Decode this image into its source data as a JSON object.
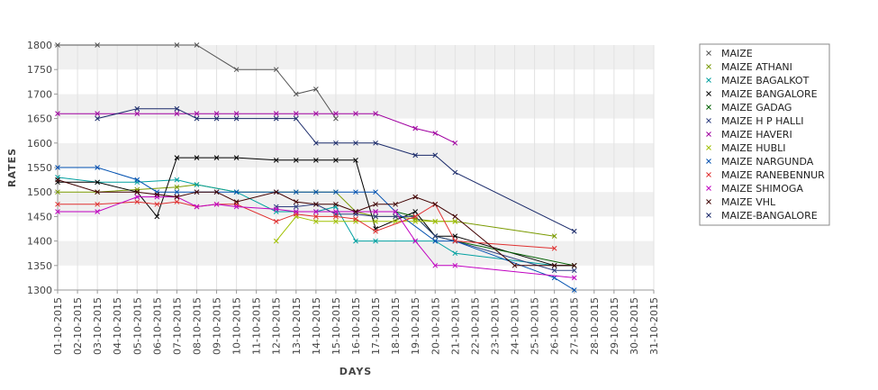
{
  "chart_data": {
    "type": "line",
    "xlabel": "DAYS",
    "ylabel": "RATES",
    "ylim": [
      1300,
      1800
    ],
    "yticks": [
      1300,
      1350,
      1400,
      1450,
      1500,
      1550,
      1600,
      1650,
      1700,
      1750,
      1800
    ],
    "grid": "alternating horizontal bands",
    "legend_position": "right",
    "categories": [
      "01-10-2015",
      "02-10-2015",
      "03-10-2015",
      "04-10-2015",
      "05-10-2015",
      "06-10-2015",
      "07-10-2015",
      "08-10-2015",
      "09-10-2015",
      "10-10-2015",
      "11-10-2015",
      "12-10-2015",
      "13-10-2015",
      "14-10-2015",
      "15-10-2015",
      "16-10-2015",
      "17-10-2015",
      "18-10-2015",
      "19-10-2015",
      "20-10-2015",
      "21-10-2015",
      "22-10-2015",
      "23-10-2015",
      "24-10-2015",
      "25-10-2015",
      "26-10-2015",
      "27-10-2015",
      "28-10-2015",
      "29-10-2015",
      "30-10-2015",
      "31-10-2015"
    ],
    "series": [
      {
        "name": "MAIZE",
        "color": "#555555",
        "points": [
          [
            0,
            1800
          ],
          [
            2,
            1800
          ],
          [
            6,
            1800
          ],
          [
            7,
            1800
          ],
          [
            9,
            1750
          ],
          [
            11,
            1750
          ],
          [
            12,
            1700
          ],
          [
            13,
            1710
          ],
          [
            14,
            1650
          ]
        ]
      },
      {
        "name": "MAIZE ATHANI",
        "color": "#7a9a00",
        "points": [
          [
            0,
            1500
          ],
          [
            2,
            1500
          ],
          [
            4,
            1505
          ],
          [
            6,
            1510
          ],
          [
            7,
            1515
          ],
          [
            9,
            1500
          ],
          [
            12,
            1500
          ],
          [
            13,
            1500
          ],
          [
            14,
            1500
          ],
          [
            15,
            1460
          ],
          [
            16,
            1450
          ],
          [
            17,
            1450
          ],
          [
            18,
            1445
          ],
          [
            19,
            1440
          ],
          [
            20,
            1440
          ],
          [
            25,
            1410
          ]
        ]
      },
      {
        "name": "MAIZE BAGALKOT",
        "color": "#00a0a0",
        "points": [
          [
            0,
            1530
          ],
          [
            2,
            1520
          ],
          [
            4,
            1520
          ],
          [
            6,
            1525
          ],
          [
            7,
            1515
          ],
          [
            9,
            1500
          ],
          [
            11,
            1460
          ],
          [
            12,
            1460
          ],
          [
            13,
            1460
          ],
          [
            14,
            1470
          ],
          [
            15,
            1400
          ],
          [
            16,
            1400
          ],
          [
            18,
            1400
          ],
          [
            19,
            1400
          ],
          [
            20,
            1375
          ],
          [
            25,
            1350
          ],
          [
            26,
            1350
          ]
        ]
      },
      {
        "name": "MAIZE BANGALORE",
        "color": "#000000",
        "points": [
          [
            0,
            1520
          ],
          [
            2,
            1520
          ],
          [
            4,
            1500
          ],
          [
            5,
            1450
          ],
          [
            6,
            1570
          ],
          [
            7,
            1570
          ],
          [
            8,
            1570
          ],
          [
            9,
            1570
          ],
          [
            11,
            1565
          ],
          [
            12,
            1565
          ],
          [
            13,
            1565
          ],
          [
            14,
            1565
          ],
          [
            15,
            1565
          ],
          [
            16,
            1425
          ],
          [
            18,
            1460
          ],
          [
            19,
            1410
          ],
          [
            20,
            1410
          ],
          [
            25,
            1350
          ],
          [
            26,
            1350
          ]
        ]
      },
      {
        "name": "MAIZE GADAG",
        "color": "#006000",
        "points": [
          [
            15,
            1460
          ],
          [
            16,
            1460
          ],
          [
            17,
            1460
          ],
          [
            18,
            1450
          ],
          [
            19,
            1410
          ],
          [
            20,
            1400
          ],
          [
            26,
            1350
          ]
        ]
      },
      {
        "name": "MAIZE H P HALLI",
        "color": "#304080",
        "points": [
          [
            11,
            1470
          ],
          [
            12,
            1470
          ],
          [
            13,
            1475
          ],
          [
            14,
            1455
          ],
          [
            15,
            1455
          ],
          [
            16,
            1450
          ],
          [
            17,
            1450
          ],
          [
            18,
            1450
          ],
          [
            19,
            1410
          ],
          [
            20,
            1400
          ],
          [
            25,
            1340
          ],
          [
            26,
            1340
          ]
        ]
      },
      {
        "name": "MAIZE HAVERI",
        "color": "#a000a0",
        "points": [
          [
            0,
            1660
          ],
          [
            2,
            1660
          ],
          [
            4,
            1660
          ],
          [
            6,
            1660
          ],
          [
            7,
            1660
          ],
          [
            8,
            1660
          ],
          [
            9,
            1660
          ],
          [
            11,
            1660
          ],
          [
            12,
            1660
          ],
          [
            13,
            1660
          ],
          [
            14,
            1660
          ],
          [
            15,
            1660
          ],
          [
            16,
            1660
          ],
          [
            18,
            1630
          ],
          [
            19,
            1620
          ],
          [
            20,
            1600
          ]
        ]
      },
      {
        "name": "MAIZE HUBLI",
        "color": "#a0c000",
        "points": [
          [
            11,
            1400
          ],
          [
            12,
            1450
          ],
          [
            13,
            1440
          ],
          [
            14,
            1440
          ],
          [
            15,
            1440
          ],
          [
            16,
            1440
          ],
          [
            17,
            1440
          ],
          [
            18,
            1440
          ],
          [
            19,
            1440
          ],
          [
            20,
            1440
          ]
        ]
      },
      {
        "name": "MAIZE NARGUNDA",
        "color": "#0050b0",
        "points": [
          [
            0,
            1550
          ],
          [
            2,
            1550
          ],
          [
            4,
            1525
          ],
          [
            5,
            1500
          ],
          [
            6,
            1500
          ],
          [
            7,
            1500
          ],
          [
            8,
            1500
          ],
          [
            9,
            1500
          ],
          [
            11,
            1500
          ],
          [
            12,
            1500
          ],
          [
            13,
            1500
          ],
          [
            14,
            1500
          ],
          [
            15,
            1500
          ],
          [
            16,
            1500
          ],
          [
            17,
            1460
          ],
          [
            19,
            1400
          ],
          [
            20,
            1400
          ],
          [
            25,
            1325
          ],
          [
            26,
            1300
          ]
        ]
      },
      {
        "name": "MAIZE RANEBENNUR",
        "color": "#e03030",
        "points": [
          [
            0,
            1475
          ],
          [
            2,
            1475
          ],
          [
            4,
            1480
          ],
          [
            5,
            1475
          ],
          [
            6,
            1480
          ],
          [
            7,
            1470
          ],
          [
            8,
            1475
          ],
          [
            9,
            1475
          ],
          [
            11,
            1440
          ],
          [
            12,
            1455
          ],
          [
            13,
            1450
          ],
          [
            14,
            1450
          ],
          [
            15,
            1445
          ],
          [
            16,
            1420
          ],
          [
            18,
            1450
          ],
          [
            19,
            1475
          ],
          [
            20,
            1400
          ],
          [
            25,
            1385
          ]
        ]
      },
      {
        "name": "MAIZE SHIMOGA",
        "color": "#c000c0",
        "points": [
          [
            0,
            1460
          ],
          [
            2,
            1460
          ],
          [
            4,
            1490
          ],
          [
            5,
            1490
          ],
          [
            6,
            1490
          ],
          [
            7,
            1470
          ],
          [
            8,
            1475
          ],
          [
            9,
            1470
          ],
          [
            11,
            1465
          ],
          [
            12,
            1460
          ],
          [
            13,
            1460
          ],
          [
            14,
            1460
          ],
          [
            15,
            1460
          ],
          [
            16,
            1460
          ],
          [
            17,
            1460
          ],
          [
            18,
            1400
          ],
          [
            19,
            1350
          ],
          [
            20,
            1350
          ],
          [
            26,
            1325
          ]
        ]
      },
      {
        "name": "MAIZE VHL",
        "color": "#400000",
        "points": [
          [
            0,
            1525
          ],
          [
            2,
            1500
          ],
          [
            4,
            1500
          ],
          [
            5,
            1495
          ],
          [
            6,
            1490
          ],
          [
            7,
            1500
          ],
          [
            8,
            1500
          ],
          [
            9,
            1480
          ],
          [
            11,
            1500
          ],
          [
            12,
            1480
          ],
          [
            13,
            1475
          ],
          [
            14,
            1475
          ],
          [
            15,
            1460
          ],
          [
            16,
            1475
          ],
          [
            17,
            1475
          ],
          [
            18,
            1490
          ],
          [
            19,
            1475
          ],
          [
            20,
            1450
          ],
          [
            23,
            1350
          ],
          [
            25,
            1350
          ],
          [
            26,
            1350
          ]
        ]
      },
      {
        "name": "MAIZE-BANGALORE",
        "color": "#1a2a6a",
        "points": [
          [
            2,
            1650
          ],
          [
            4,
            1670
          ],
          [
            6,
            1670
          ],
          [
            7,
            1650
          ],
          [
            8,
            1650
          ],
          [
            9,
            1650
          ],
          [
            11,
            1650
          ],
          [
            12,
            1650
          ],
          [
            13,
            1600
          ],
          [
            14,
            1600
          ],
          [
            15,
            1600
          ],
          [
            16,
            1600
          ],
          [
            18,
            1575
          ],
          [
            19,
            1575
          ],
          [
            20,
            1540
          ],
          [
            26,
            1420
          ]
        ]
      }
    ]
  }
}
